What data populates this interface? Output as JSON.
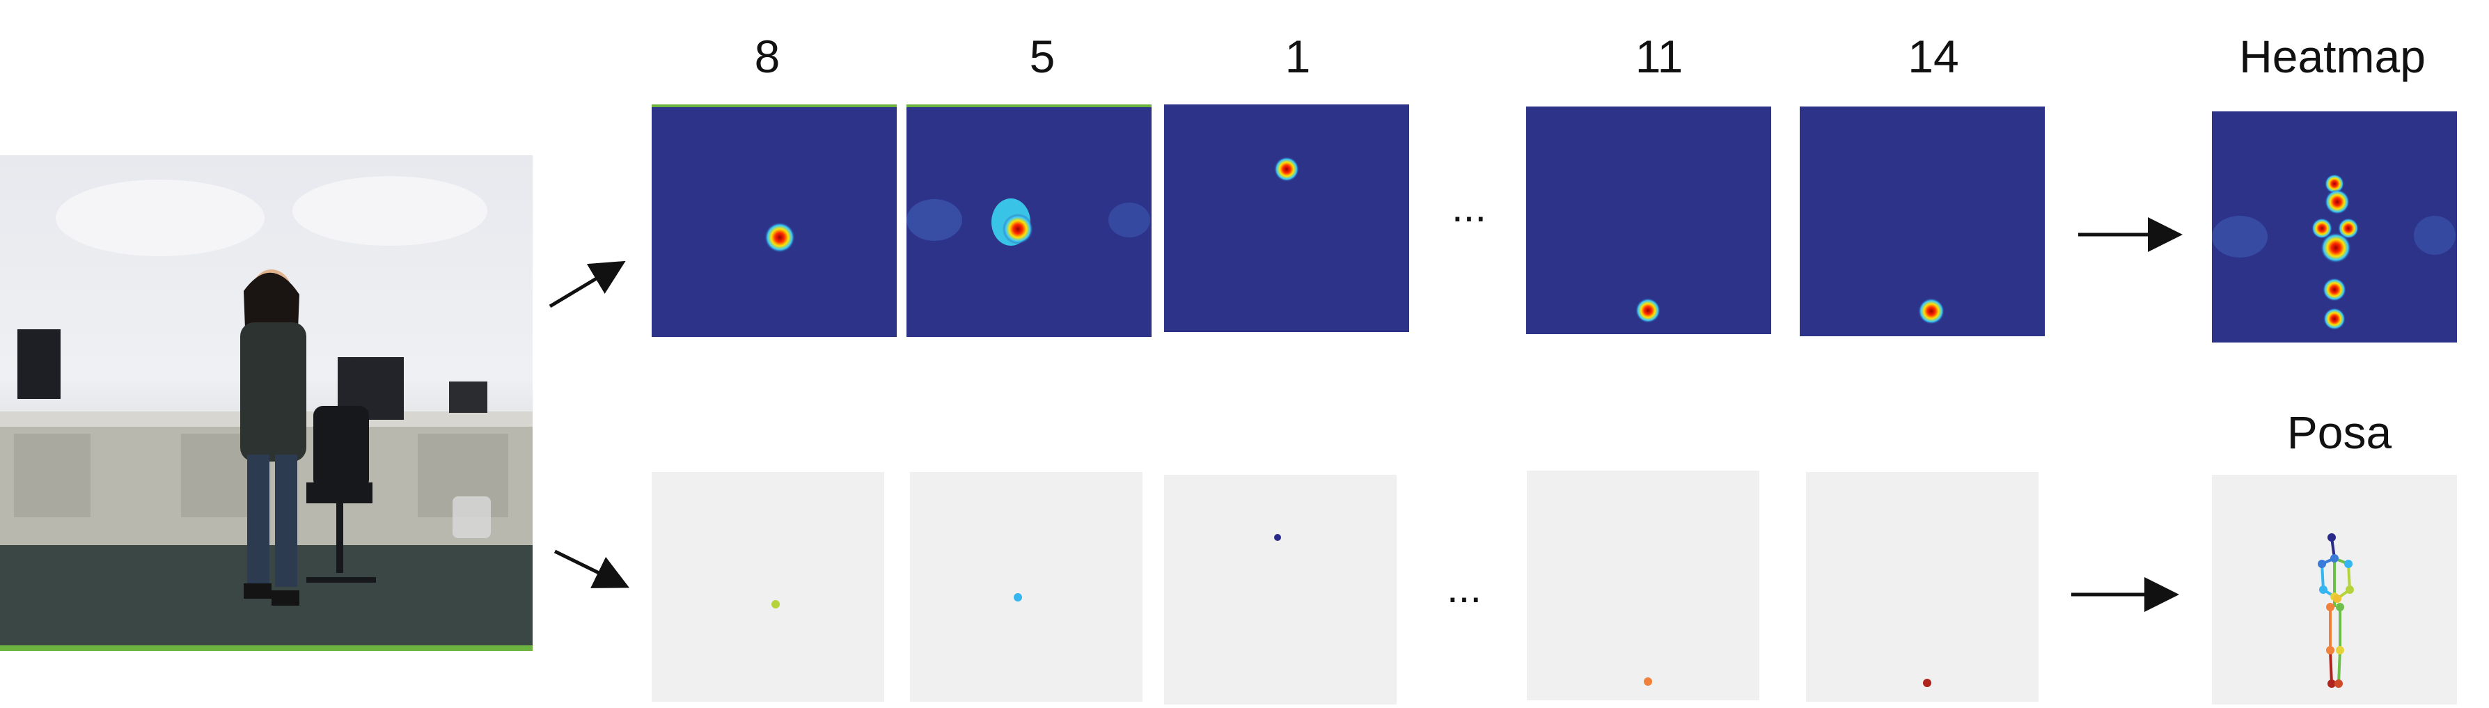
{
  "figure": {
    "keypoint_labels": [
      "8",
      "5",
      "1",
      "11",
      "14"
    ],
    "heatmap_title": "Heatmap",
    "pose_title": "Posa",
    "ellipsis": "..."
  },
  "colors": {
    "heatmap_background": "#2d3388",
    "pose_background": "#f0f0f0",
    "keypoint_colors": [
      "#b5d33a",
      "#35b6f0",
      "#2a2a8a",
      "#f0803a",
      "#b0241e"
    ]
  },
  "icons": {
    "arrow": "right-arrow-icon",
    "person_photo": "photo-of-person-standing-in-office"
  }
}
